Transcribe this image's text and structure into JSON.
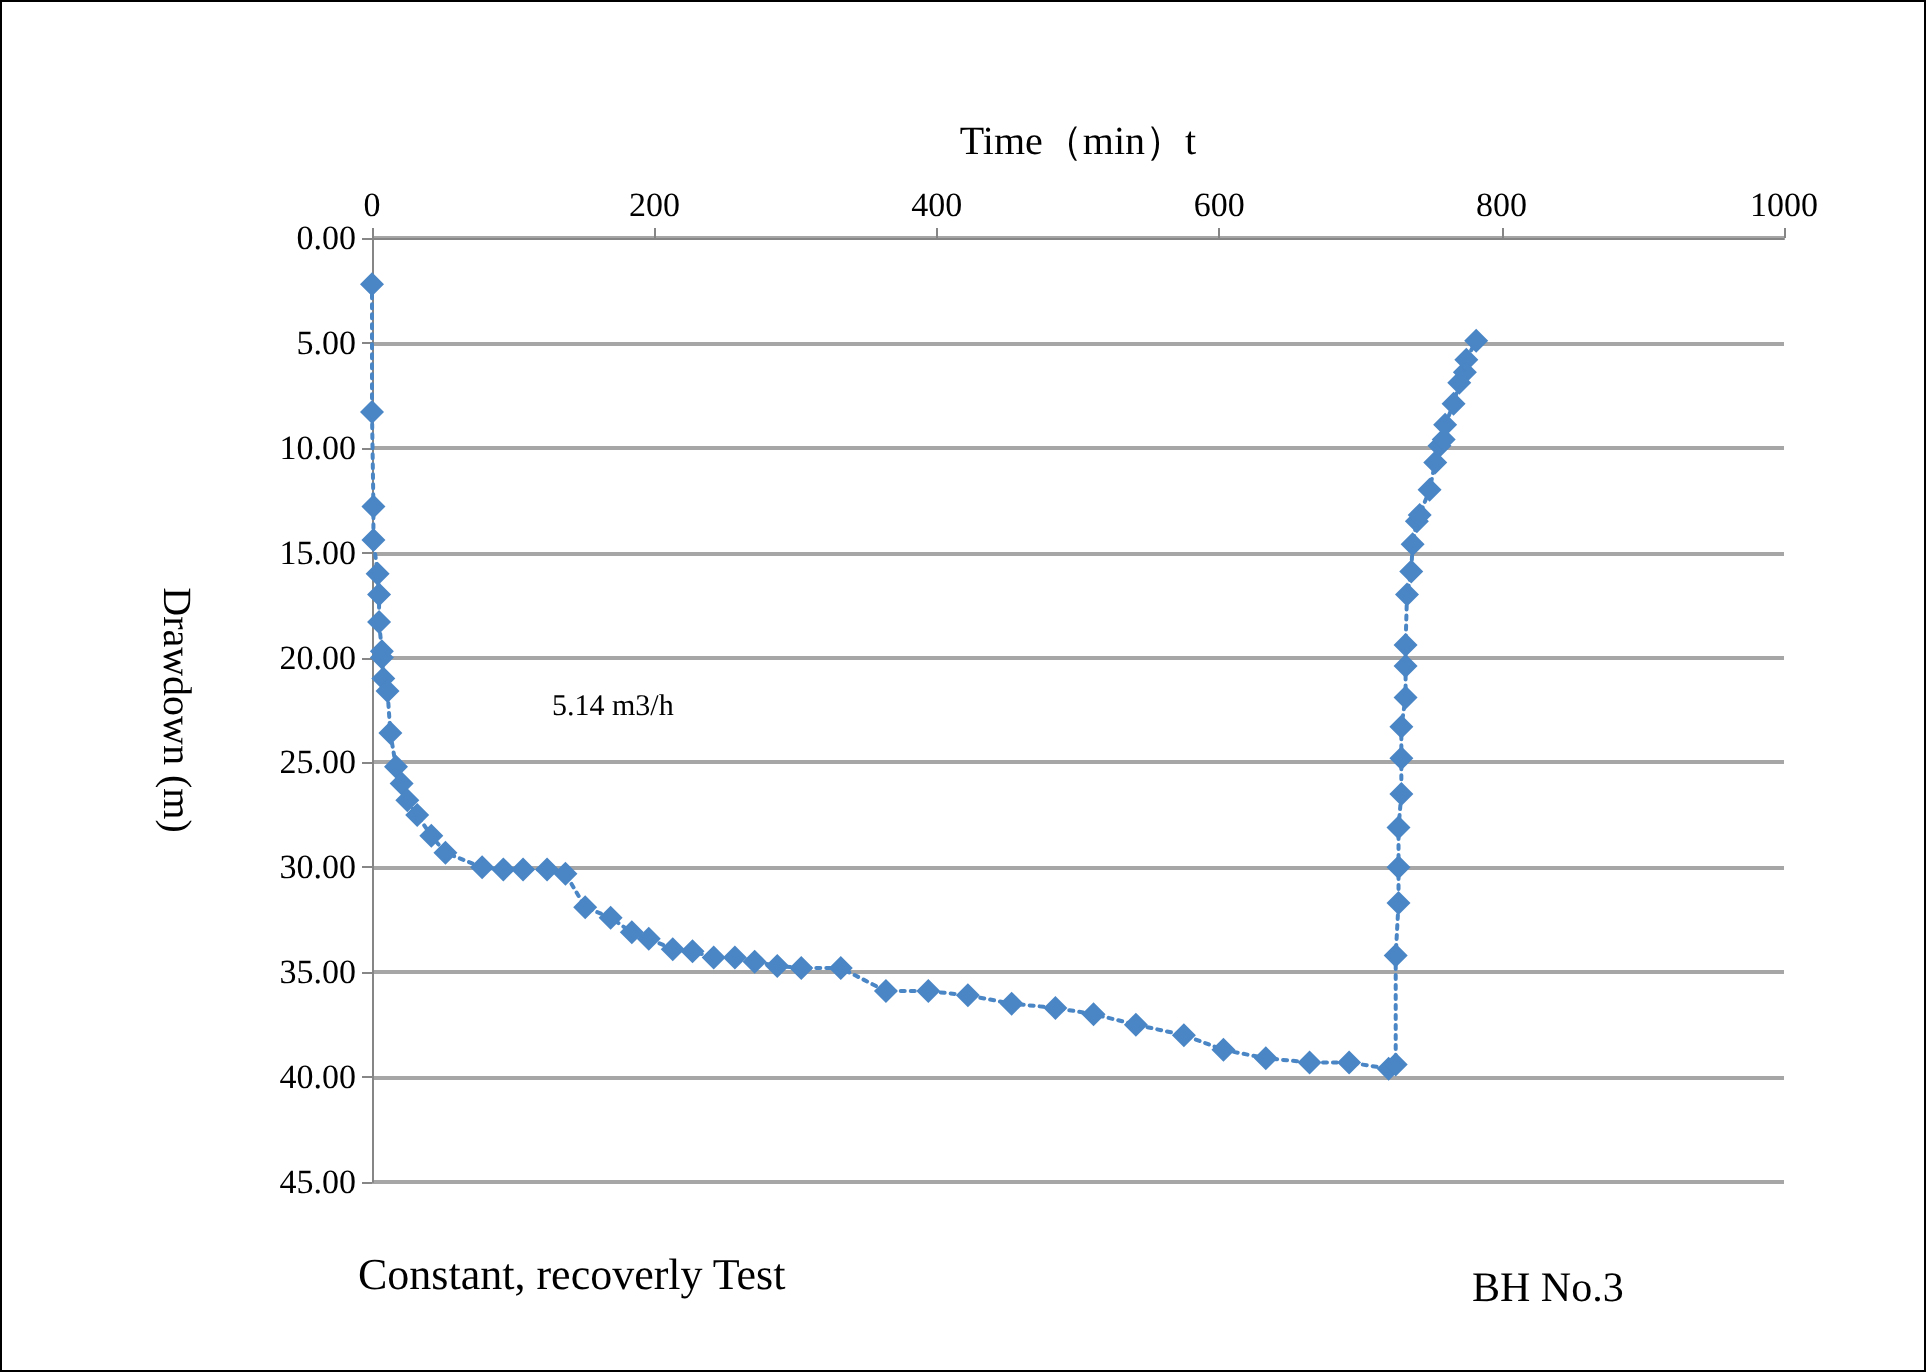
{
  "chart_data": {
    "type": "line",
    "xlabel": "Time（min）t",
    "ylabel": "Drawdown (m)",
    "annotations": [
      "5.14 m3/h",
      "Constant, recoverly Test",
      "BH No.3"
    ],
    "series": [
      {
        "color": "#4a86c5",
        "x": [
          0,
          0,
          1,
          1,
          4,
          5,
          5,
          7,
          7,
          8,
          11,
          13,
          17,
          21,
          25,
          32,
          42,
          52,
          78,
          93,
          107,
          124,
          137,
          151,
          169,
          184,
          196,
          213,
          227,
          242,
          257,
          271,
          287,
          304,
          332,
          364,
          394,
          422,
          453,
          484,
          511,
          541,
          575,
          603,
          633,
          664,
          692,
          720,
          725,
          725,
          727,
          727,
          727,
          729,
          729,
          729,
          732,
          732,
          732,
          733,
          736,
          737,
          740,
          742,
          749,
          753,
          756,
          759,
          760,
          766,
          770,
          774,
          775,
          782
        ],
        "values": [
          2.2,
          8.3,
          12.8,
          14.4,
          16.0,
          17.0,
          18.3,
          19.7,
          20.0,
          21.0,
          21.6,
          23.6,
          25.2,
          26.0,
          26.8,
          27.5,
          28.5,
          29.3,
          30.0,
          30.1,
          30.1,
          30.1,
          30.3,
          31.9,
          32.4,
          33.1,
          33.4,
          33.9,
          34.0,
          34.3,
          34.3,
          34.5,
          34.7,
          34.8,
          34.8,
          35.9,
          35.9,
          36.1,
          36.5,
          36.7,
          37.0,
          37.5,
          38.0,
          38.7,
          39.1,
          39.3,
          39.3,
          39.6,
          39.4,
          34.2,
          31.7,
          30.0,
          28.1,
          26.5,
          24.8,
          23.3,
          21.9,
          20.4,
          19.4,
          17.0,
          15.9,
          14.6,
          13.5,
          13.2,
          12.0,
          10.7,
          9.9,
          9.6,
          8.9,
          7.9,
          6.9,
          6.4,
          5.8,
          4.9
        ]
      }
    ],
    "xlim": [
      0,
      1000
    ],
    "xticks": [
      0,
      200,
      400,
      600,
      800,
      1000
    ],
    "ylim": [
      45,
      0
    ],
    "yticks": [
      {
        "value": 0,
        "label": "0.00"
      },
      {
        "value": 5,
        "label": "5.00"
      },
      {
        "value": 10,
        "label": "10.00"
      },
      {
        "value": 15,
        "label": "15.00"
      },
      {
        "value": 20,
        "label": "20.00"
      },
      {
        "value": 25,
        "label": "25.00"
      },
      {
        "value": 30,
        "label": "30.00"
      },
      {
        "value": 35,
        "label": "35.00"
      },
      {
        "value": 40,
        "label": "40.00"
      },
      {
        "value": 45,
        "label": "45.00"
      }
    ],
    "grid": "y",
    "marker": "diamond",
    "line_style": "dotted"
  }
}
